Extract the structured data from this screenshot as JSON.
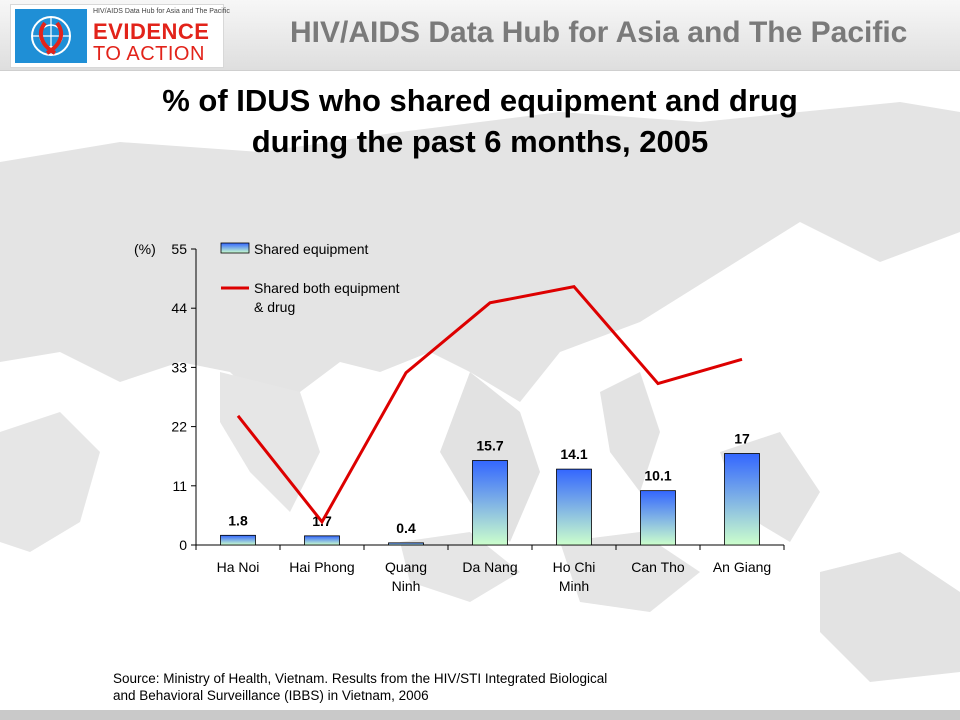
{
  "header": {
    "logo_small_text": "HIV/AIDS Data Hub for Asia and The Pacific",
    "logo_line1": "EVIDENCE",
    "logo_line2": "TO ACTION",
    "hub_title": "HIV/AIDS Data Hub for Asia and The Pacific"
  },
  "chart_data": {
    "type": "bar",
    "title_line1": "% of IDUS who shared equipment and drug",
    "title_line2": "during the past 6 months, 2005",
    "ylabel": "(%)",
    "ylim": [
      0,
      55
    ],
    "yticks": [
      "0",
      "11",
      "22",
      "33",
      "44",
      "55"
    ],
    "categories": [
      [
        "Ha Noi"
      ],
      [
        "Hai Phong"
      ],
      [
        "Quang",
        "Ninh"
      ],
      [
        "Da Nang"
      ],
      [
        "Ho Chi",
        "Minh"
      ],
      [
        "Can Tho"
      ],
      [
        "An Giang"
      ]
    ],
    "series": [
      {
        "name": "Shared equipment",
        "type": "bar",
        "values": [
          1.8,
          1.7,
          0.4,
          15.7,
          14.1,
          10.1,
          17
        ],
        "labels": [
          "1.8",
          "1.7",
          "0.4",
          "15.7",
          "14.1",
          "10.1",
          "17"
        ],
        "color_top": "#3366ff",
        "color_bottom": "#ccffcc"
      },
      {
        "name_line1": "Shared both equipment",
        "name_line2": "& drug",
        "type": "line",
        "values": [
          24,
          4.3,
          32,
          45,
          48,
          30,
          34.5
        ],
        "color": "#dd0000"
      }
    ],
    "legend_position": "top-left-inside",
    "grid": false
  },
  "source": {
    "line1": "Source: Ministry of Health, Vietnam. Results from the HIV/STI Integrated Biological",
    "line2": "and Behavioral Surveillance (IBBS) in Vietnam, 2006"
  }
}
